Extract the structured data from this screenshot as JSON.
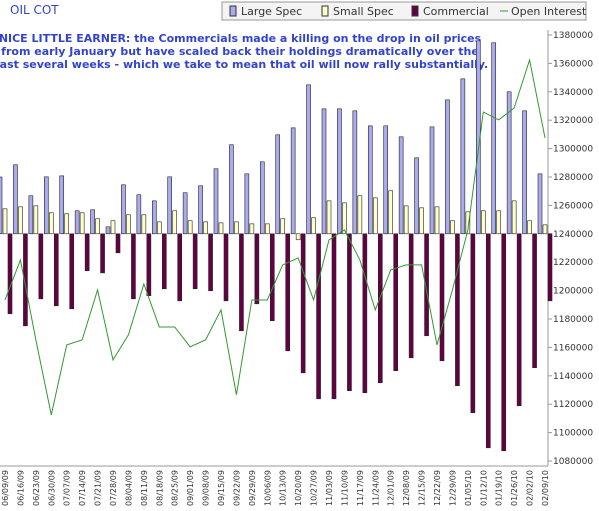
{
  "chart_data": {
    "type": "bar",
    "title": "OIL COT",
    "annotation": [
      "NICE LITTLE EARNER: the Commercials made a killing on the drop in oil prices",
      "from early January but have scaled back their holdings dramatically over the",
      "past several weeks - which we take to mean that oil will now rally substantially."
    ],
    "categories": [
      "06/09/09",
      "06/16/09",
      "06/23/09",
      "06/30/09",
      "07/07/09",
      "07/14/09",
      "07/21/09",
      "07/28/09",
      "08/04/09",
      "08/11/09",
      "08/18/09",
      "08/25/09",
      "09/01/09",
      "09/08/09",
      "09/15/09",
      "09/22/09",
      "09/29/09",
      "10/06/09",
      "10/13/09",
      "10/20/09",
      "10/27/09",
      "11/03/09",
      "11/10/09",
      "11/17/09",
      "11/24/09",
      "12/01/09",
      "12/08/09",
      "12/15/09",
      "12/22/09",
      "12/29/09",
      "01/05/10",
      "01/12/10",
      "01/19/10",
      "01/26/10",
      "02/02/10",
      "02/09/10"
    ],
    "series": [
      {
        "name": "Large Spec",
        "color": "#aaaaee",
        "values": [
          40000,
          48600,
          26800,
          40100,
          40800,
          16200,
          16900,
          4900,
          34500,
          27500,
          23200,
          40100,
          28900,
          33800,
          45800,
          62700,
          42200,
          50700,
          69700,
          74600,
          104900,
          88000,
          88000,
          86600,
          76000,
          76000,
          68300,
          53500,
          75300,
          94300,
          109100,
          135900,
          134500,
          100000,
          86600,
          42200
        ]
      },
      {
        "name": "Small Spec",
        "color": "#ffffcc",
        "values": [
          17600,
          19000,
          19700,
          14800,
          14100,
          14800,
          10600,
          9200,
          13400,
          13400,
          8400,
          16200,
          9200,
          8400,
          7700,
          8400,
          7000,
          7000,
          10600,
          -4200,
          11300,
          23200,
          21800,
          26800,
          25300,
          30300,
          19700,
          18300,
          19000,
          9200,
          15500,
          16200,
          16200,
          23200,
          9200,
          6300
        ]
      },
      {
        "name": "Commercial",
        "color": "#660044",
        "values": [
          -56300,
          -64800,
          -45800,
          -50700,
          -52800,
          -26000,
          -27500,
          -13400,
          -45800,
          -43600,
          -38700,
          -47200,
          -38700,
          -40100,
          -47200,
          -68300,
          -49300,
          -61200,
          -82400,
          -97900,
          -116200,
          -116200,
          -110500,
          -111900,
          -104900,
          -96400,
          -87300,
          -71800,
          -89400,
          -107000,
          -126000,
          -150700,
          -152800,
          -121100,
          -94300,
          -47200
        ]
      },
      {
        "name": "Open Interest",
        "color": "#339933",
        "axis": "y2",
        "values": [
          1193400,
          1221600,
          1165300,
          1112500,
          1161800,
          1165300,
          1200500,
          1151200,
          1168800,
          1204700,
          1174400,
          1174400,
          1160400,
          1165300,
          1186400,
          1126600,
          1193400,
          1193400,
          1218100,
          1223000,
          1193400,
          1235700,
          1242700,
          1221600,
          1186400,
          1214600,
          1218100,
          1218100,
          1161800,
          1200500,
          1242700,
          1325800,
          1320200,
          1328600,
          1362400,
          1307500
        ]
      }
    ],
    "ylim": [
      -160000,
      140000
    ],
    "y2lim": [
      1080000,
      1380000
    ],
    "y2ticks": [
      1080000,
      1100000,
      1120000,
      1140000,
      1160000,
      1180000,
      1200000,
      1220000,
      1240000,
      1260000,
      1280000,
      1300000,
      1320000,
      1340000,
      1360000,
      1380000
    ]
  }
}
